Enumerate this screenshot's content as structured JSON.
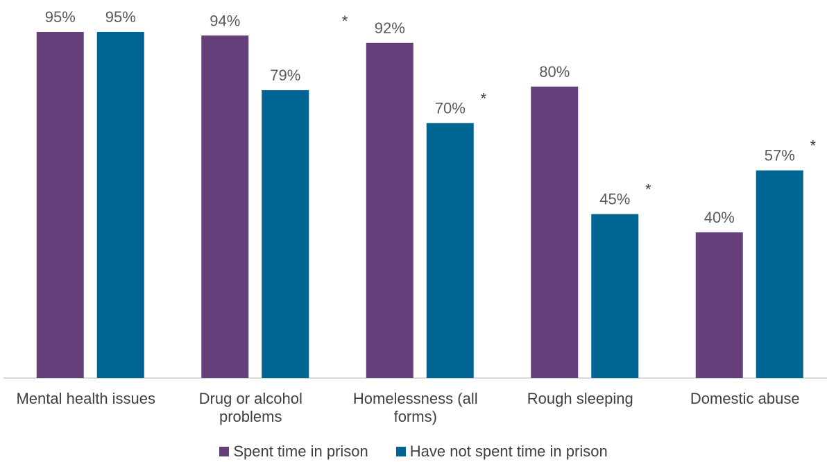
{
  "chart_data": {
    "type": "bar",
    "categories": [
      [
        "Mental health issues"
      ],
      [
        "Drug or alcohol",
        "problems"
      ],
      [
        "Homelessness (all",
        "forms)"
      ],
      [
        "Rough sleeping"
      ],
      [
        "Domestic abuse"
      ]
    ],
    "series": [
      {
        "name": "Spent time in prison",
        "values": [
          95,
          94,
          92,
          80,
          40
        ],
        "color": "#653f7a"
      },
      {
        "name": "Have not spent time in prison",
        "values": [
          95,
          79,
          70,
          45,
          57
        ],
        "color": "#006592"
      }
    ],
    "value_labels": [
      [
        "95%",
        "94%",
        "92%",
        "80%",
        "40%"
      ],
      [
        "95%",
        "79%",
        "70%",
        "45%",
        "57%"
      ]
    ],
    "significance_marker": "*",
    "significant_categories": [
      2,
      3,
      4
    ],
    "ylim": [
      0,
      95
    ],
    "grid": false,
    "legend_position": "bottom"
  }
}
